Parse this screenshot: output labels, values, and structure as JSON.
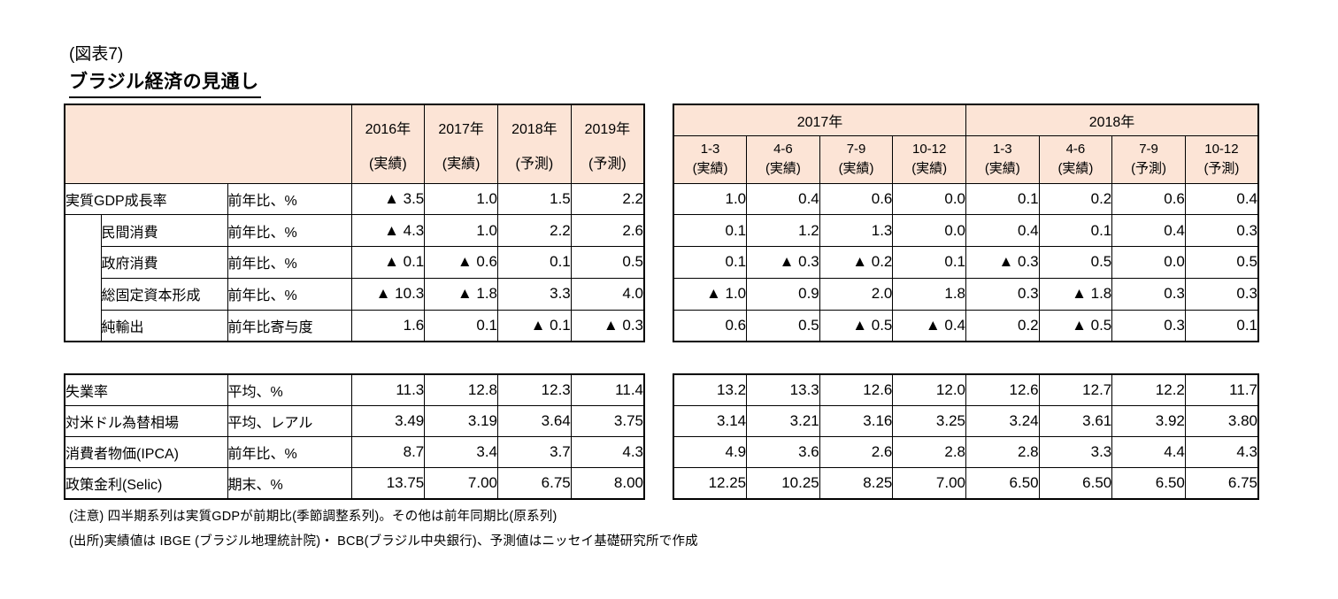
{
  "page": {
    "figure_label": "(図表7)",
    "title": "ブラジル経済の見通し",
    "notes": [
      "(注意) 四半期系列は実質GDPが前期比(季節調整系列)。その他は前年同期比(原系列)",
      "(出所)実績値は IBGE (ブラジル地理統計院)・ BCB(ブラジル中央銀行)、予測値はニッセイ基礎研究所で作成"
    ]
  },
  "colors": {
    "header_bg": "#fce4d6",
    "border": "#000000"
  },
  "annual_table": {
    "col_headers": [
      {
        "line1": "2016年",
        "line2": "(実績)"
      },
      {
        "line1": "2017年",
        "line2": "(実績)"
      },
      {
        "line1": "2018年",
        "line2": "(予測)"
      },
      {
        "line1": "2019年",
        "line2": "(予測)"
      }
    ]
  },
  "quarterly_table": {
    "year_headers": [
      "2017年",
      "2018年"
    ],
    "col_headers": [
      {
        "line1": "1-3",
        "line2": "(実績)"
      },
      {
        "line1": "4-6",
        "line2": "(実績)"
      },
      {
        "line1": "7-9",
        "line2": "(実績)"
      },
      {
        "line1": "10-12",
        "line2": "(実績)"
      },
      {
        "line1": "1-3",
        "line2": "(実績)"
      },
      {
        "line1": "4-6",
        "line2": "(実績)"
      },
      {
        "line1": "7-9",
        "line2": "(予測)"
      },
      {
        "line1": "10-12",
        "line2": "(予測)"
      }
    ]
  },
  "block1": {
    "rows": [
      {
        "label": "実質GDP成長率",
        "indent": false,
        "unit": "前年比、%",
        "annual": [
          "▲ 3.5",
          "1.0",
          "1.5",
          "2.2"
        ],
        "quarterly": [
          "1.0",
          "0.4",
          "0.6",
          "0.0",
          "0.1",
          "0.2",
          "0.6",
          "0.4"
        ]
      },
      {
        "label": "民間消費",
        "indent": true,
        "unit": "前年比、%",
        "annual": [
          "▲ 4.3",
          "1.0",
          "2.2",
          "2.6"
        ],
        "quarterly": [
          "0.1",
          "1.2",
          "1.3",
          "0.0",
          "0.4",
          "0.1",
          "0.4",
          "0.3"
        ]
      },
      {
        "label": "政府消費",
        "indent": true,
        "unit": "前年比、%",
        "annual": [
          "▲ 0.1",
          "▲ 0.6",
          "0.1",
          "0.5"
        ],
        "quarterly": [
          "0.1",
          "▲ 0.3",
          "▲ 0.2",
          "0.1",
          "▲ 0.3",
          "0.5",
          "0.0",
          "0.5"
        ]
      },
      {
        "label": "総固定資本形成",
        "indent": true,
        "unit": "前年比、%",
        "annual": [
          "▲ 10.3",
          "▲ 1.8",
          "3.3",
          "4.0"
        ],
        "quarterly": [
          "▲ 1.0",
          "0.9",
          "2.0",
          "1.8",
          "0.3",
          "▲ 1.8",
          "0.3",
          "0.3"
        ]
      },
      {
        "label": "純輸出",
        "indent": true,
        "unit": "前年比寄与度",
        "annual": [
          "1.6",
          "0.1",
          "▲ 0.1",
          "▲ 0.3"
        ],
        "quarterly": [
          "0.6",
          "0.5",
          "▲ 0.5",
          "▲ 0.4",
          "0.2",
          "▲ 0.5",
          "0.3",
          "0.1"
        ]
      }
    ]
  },
  "block2": {
    "rows": [
      {
        "label": "失業率",
        "unit": "平均、%",
        "annual": [
          "11.3",
          "12.8",
          "12.3",
          "11.4"
        ],
        "quarterly": [
          "13.2",
          "13.3",
          "12.6",
          "12.0",
          "12.6",
          "12.7",
          "12.2",
          "11.7"
        ]
      },
      {
        "label": "対米ドル為替相場",
        "unit": "平均、レアル",
        "annual": [
          "3.49",
          "3.19",
          "3.64",
          "3.75"
        ],
        "quarterly": [
          "3.14",
          "3.21",
          "3.16",
          "3.25",
          "3.24",
          "3.61",
          "3.92",
          "3.80"
        ]
      },
      {
        "label": "消費者物価(IPCA)",
        "unit": "前年比、%",
        "annual": [
          "8.7",
          "3.4",
          "3.7",
          "4.3"
        ],
        "quarterly": [
          "4.9",
          "3.6",
          "2.6",
          "2.8",
          "2.8",
          "3.3",
          "4.4",
          "4.3"
        ]
      },
      {
        "label": "政策金利(Selic)",
        "unit": "期末、%",
        "annual": [
          "13.75",
          "7.00",
          "6.75",
          "8.00"
        ],
        "quarterly": [
          "12.25",
          "10.25",
          "8.25",
          "7.00",
          "6.50",
          "6.50",
          "6.50",
          "6.75"
        ]
      }
    ]
  }
}
